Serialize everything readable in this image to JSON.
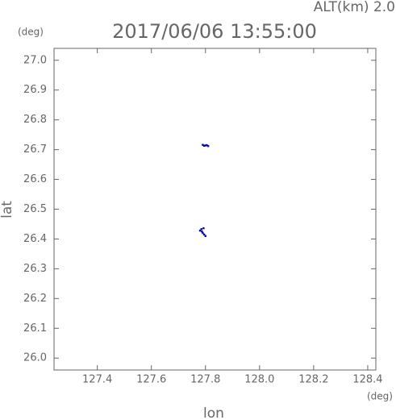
{
  "chart_data": {
    "type": "scatter",
    "title": "2017/06/06 13:55:00",
    "annotation": "ALT(km) 2.0",
    "x_label": "lon",
    "y_label": "lat",
    "x_unit": "(deg)",
    "y_unit": "(deg)",
    "x": [
      127.79,
      127.795,
      127.8,
      127.81,
      127.805,
      127.785,
      127.78,
      127.79,
      127.795,
      127.8,
      127.787,
      127.793
    ],
    "y": [
      26.716,
      26.713,
      26.714,
      26.712,
      26.715,
      26.433,
      26.428,
      26.42,
      26.415,
      26.41,
      26.425,
      26.436
    ],
    "color": "#0000b0",
    "xlim": [
      127.24,
      128.43
    ],
    "xticks": [
      127.4,
      127.6,
      127.8,
      {
        "value": 128.0,
        "label": "128.0"
      },
      128.2,
      128.4
    ],
    "ylim": [
      25.96,
      27.04
    ],
    "yticks": [
      {
        "value": 26.0,
        "label": "26.0"
      },
      26.1,
      26.2,
      26.3,
      26.4,
      26.5,
      26.6,
      26.7,
      26.8,
      26.9,
      {
        "value": 27.0,
        "label": "27.0"
      }
    ]
  }
}
